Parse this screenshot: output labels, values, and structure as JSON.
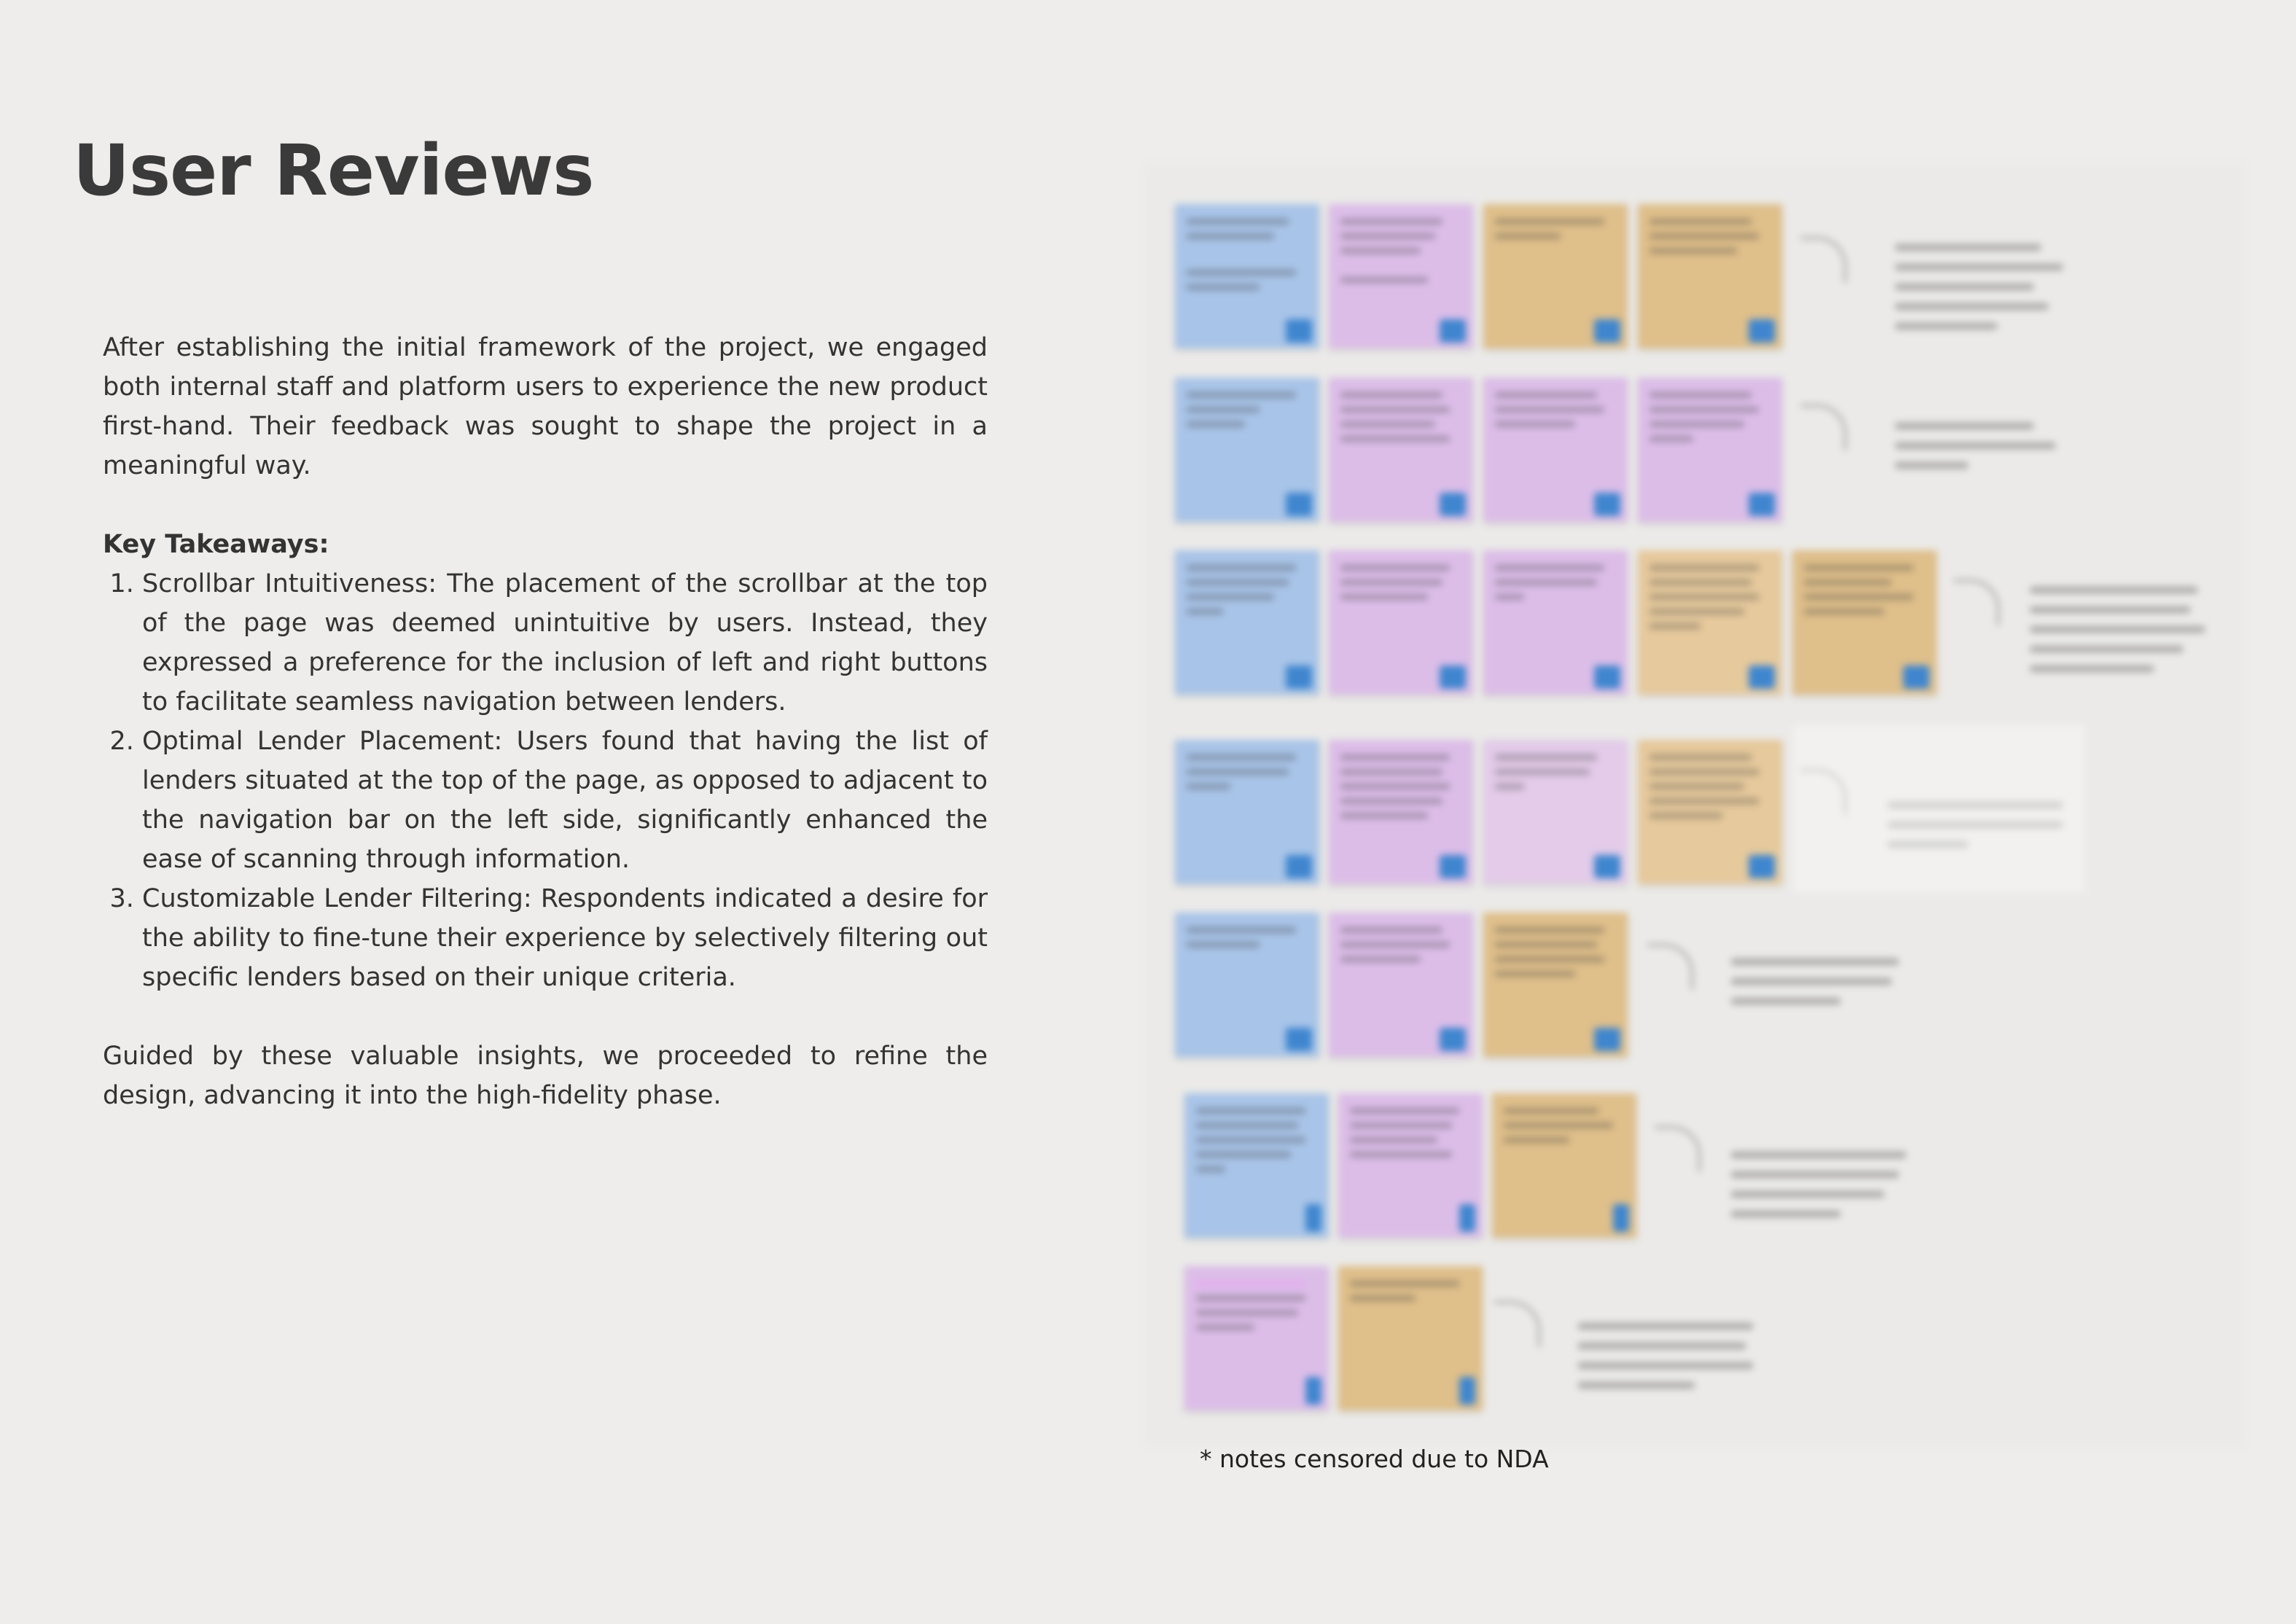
{
  "title": "User Reviews",
  "intro": "After establishing the initial framework of the project, we engaged both internal staff and platform users to experience the new product first-hand. Their  feedback was sought to shape the project in a meaningful way.",
  "key_takeaways": {
    "heading": "Key Takeaways:",
    "items": [
      "Scrollbar Intuitiveness: The placement of the scrollbar at the top of the page was deemed unintuitive by users. Instead, they expressed a preference for the inclusion of left and right buttons to facilitate seamless navigation between lenders.",
      "Optimal Lender Placement: Users found that having the list of lenders situated at the top of the page, as opposed to adjacent to the navigation bar on the left side, significantly enhanced the ease of scanning through information.",
      "Customizable Lender Filtering: Respondents indicated a desire for the ability to fine-tune their experience by selectively filtering out specific lenders based on their unique criteria."
    ]
  },
  "conclusion": "Guided by these valuable insights, we proceeded to refine the design, advancing it into the high-fidelity phase.",
  "footnote": "* notes censored due to NDA",
  "colors": {
    "background": "#eeedeb",
    "note_blue": "#a8c4e8",
    "note_pink": "#dcbde8",
    "note_orange": "#dfbf8a",
    "badge": "#3f86cf"
  }
}
